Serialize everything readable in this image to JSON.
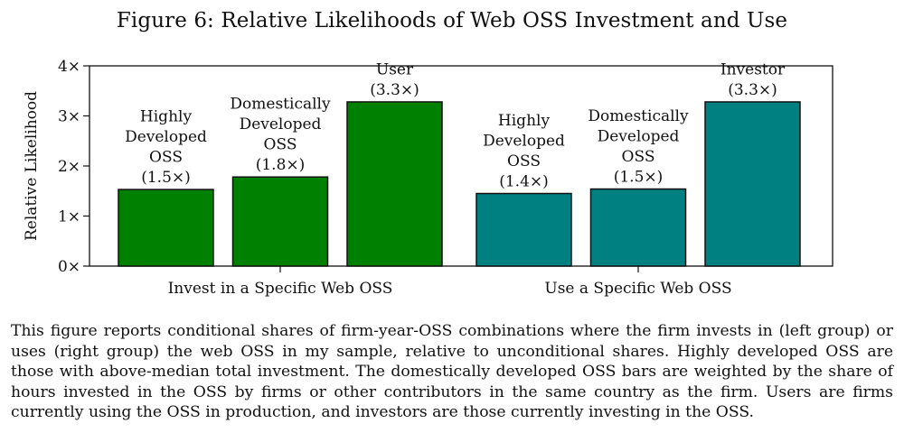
{
  "figure": {
    "title": "Figure 6: Relative Likelihoods of Web OSS Investment and Use",
    "caption": "This figure reports conditional shares of firm-year-OSS combinations where the firm invests in (left group) or uses (right group) the web OSS in my sample, relative to unconditional shares. Highly developed OSS are those with above-median total investment. The domestically developed OSS bars are weighted by the share of hours invested in the OSS by firms or other contributors in the same country as the firm. Users are firms currently using the OSS in production, and investors are those currently investing in the OSS."
  },
  "chart_data": {
    "type": "bar",
    "ylabel": "Relative Likelihood",
    "ylim": [
      0,
      4
    ],
    "yticks": [
      0,
      1,
      2,
      3,
      4
    ],
    "ytick_labels": [
      "0×",
      "1×",
      "2×",
      "3×",
      "4×"
    ],
    "grid": false,
    "groups": [
      {
        "label": "Invest in a Specific Web OSS",
        "color": "#008000",
        "bars": [
          {
            "lines": [
              "Highly",
              "Developed",
              "OSS",
              "(1.5×)"
            ],
            "value": 1.53
          },
          {
            "lines": [
              "Domestically",
              "Developed",
              "OSS",
              "(1.8×)"
            ],
            "value": 1.78
          },
          {
            "lines": [
              "User",
              "(3.3×)"
            ],
            "value": 3.28
          }
        ]
      },
      {
        "label": "Use a Specific Web OSS",
        "color": "#008080",
        "bars": [
          {
            "lines": [
              "Highly",
              "Developed",
              "OSS",
              "(1.4×)"
            ],
            "value": 1.45
          },
          {
            "lines": [
              "Domestically",
              "Developed",
              "OSS",
              "(1.5×)"
            ],
            "value": 1.54
          },
          {
            "lines": [
              "Investor",
              "(3.3×)"
            ],
            "value": 3.28
          }
        ]
      }
    ]
  }
}
